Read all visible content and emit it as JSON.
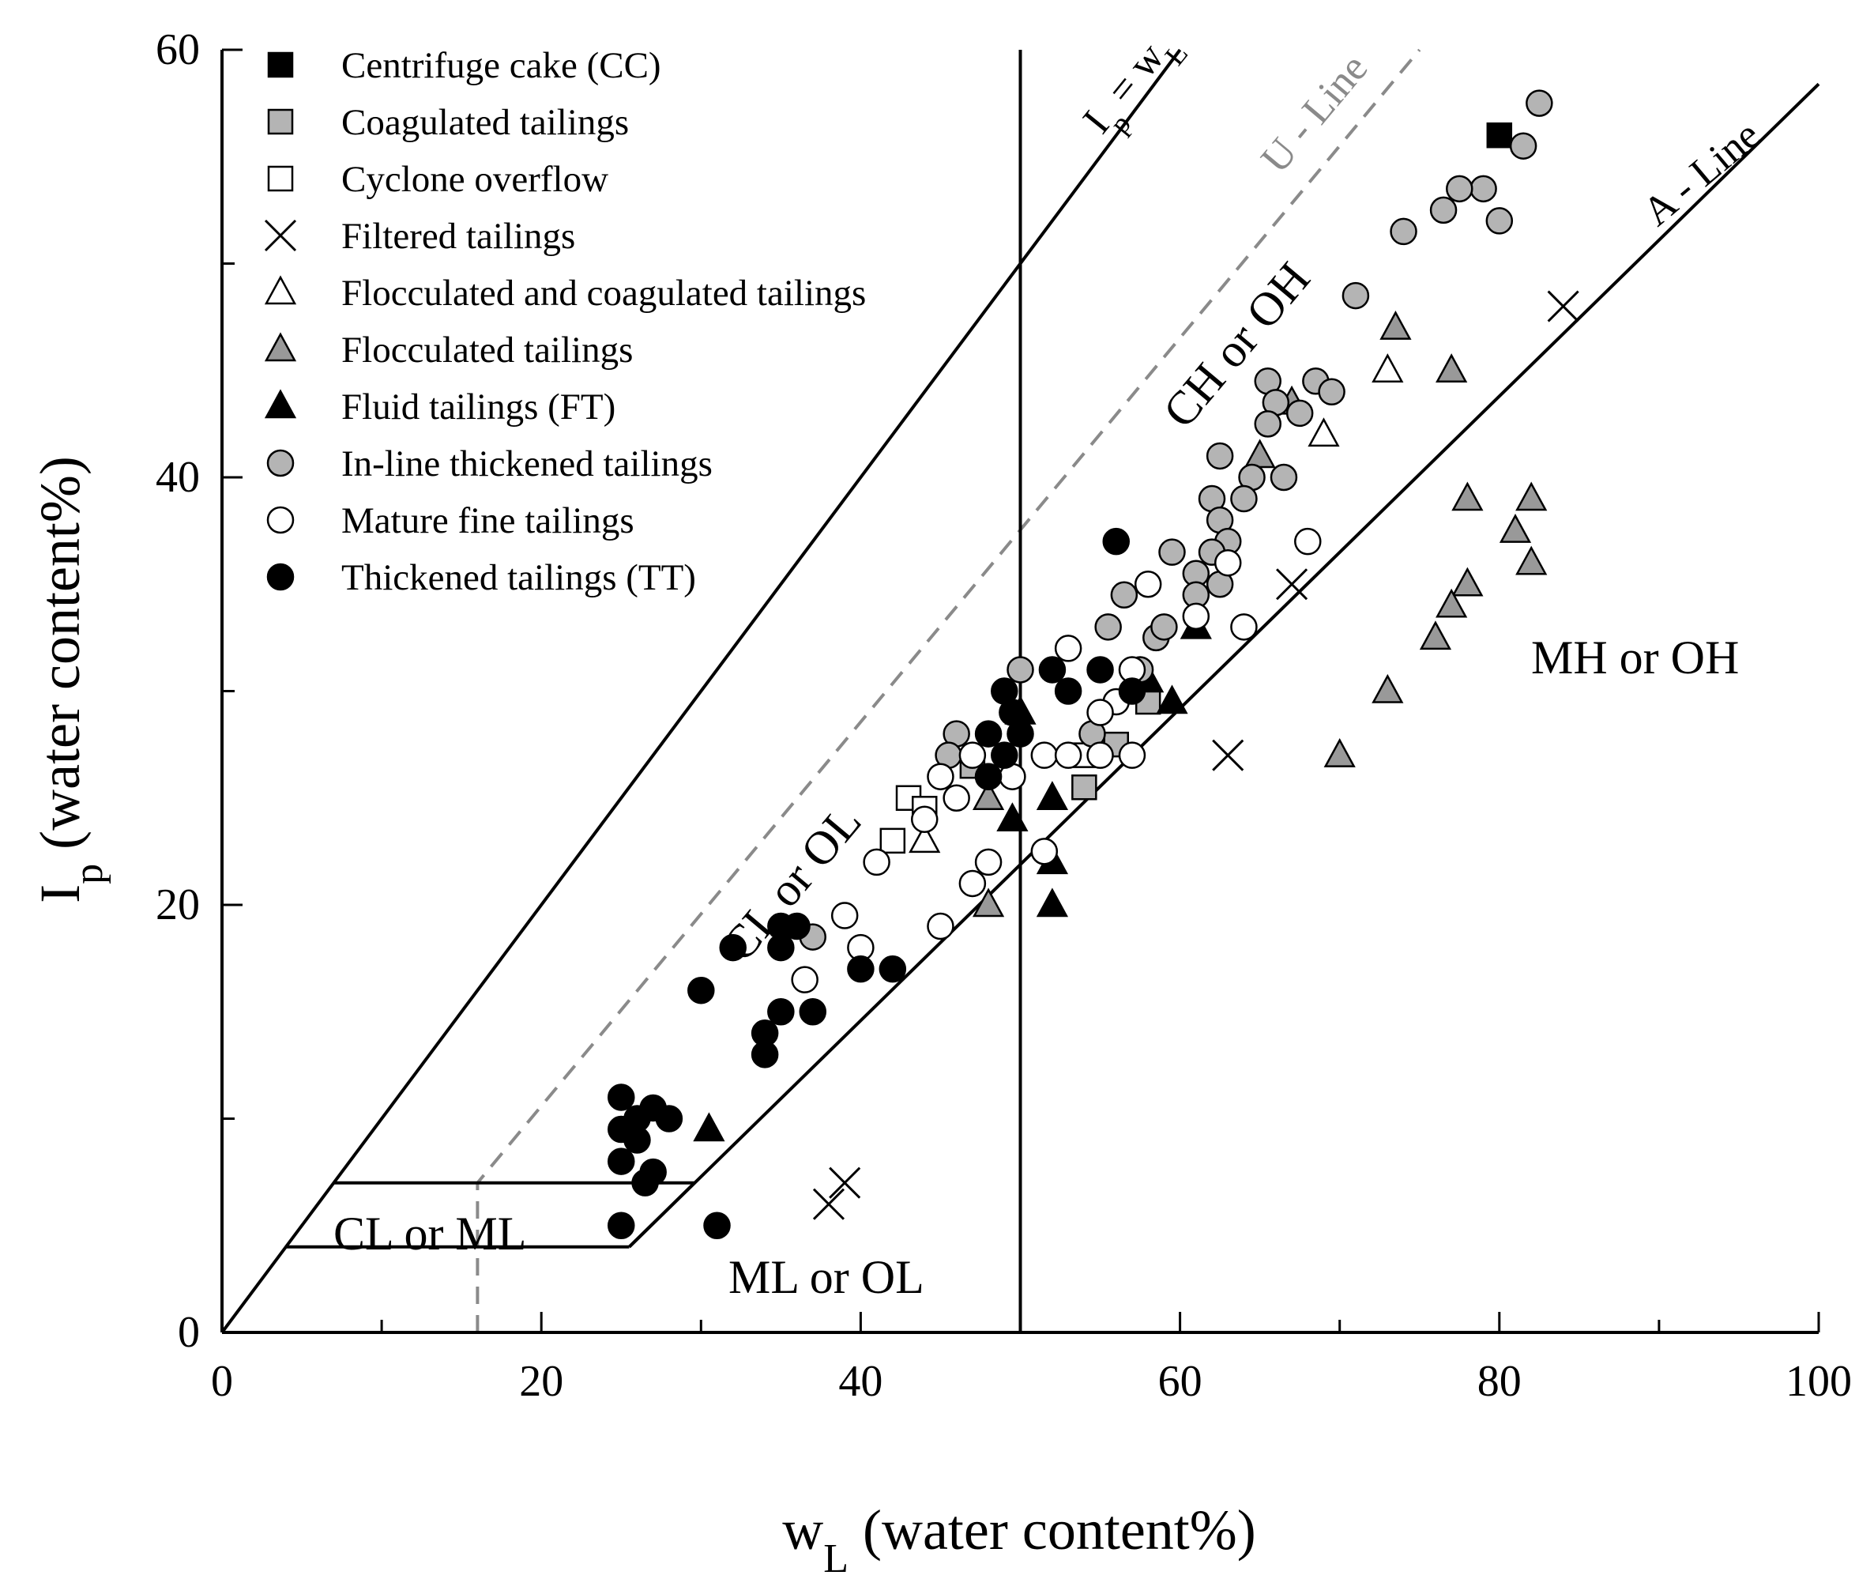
{
  "chart_data": {
    "type": "scatter",
    "title": "",
    "xlabel": {
      "main": "w",
      "sub": "L",
      "rest": " (water content%)"
    },
    "ylabel": {
      "main": "I",
      "sub": "p",
      "rest": " (water content%)"
    },
    "xlim": [
      0,
      100
    ],
    "ylim": [
      0,
      60
    ],
    "x_ticks": [
      0,
      20,
      40,
      60,
      80,
      100
    ],
    "x_tick_labels": [
      "0",
      "20",
      "40",
      "60",
      "80",
      "100"
    ],
    "y_ticks": [
      0,
      20,
      40,
      60
    ],
    "y_tick_labels": [
      "0",
      "20",
      "40",
      "60"
    ],
    "grid": false,
    "legend_position": "top-left",
    "reference_lines": [
      {
        "name": "ip-equals-wl-line",
        "label_main": "I",
        "label_sub": "p",
        "label_rest": " = w",
        "label_sub2": "L",
        "points": [
          [
            0,
            0
          ],
          [
            60,
            60
          ]
        ]
      },
      {
        "name": "u-line",
        "label": "U - Line",
        "dashed": true,
        "points": [
          [
            16,
            0
          ],
          [
            16,
            7
          ],
          [
            75,
            60
          ]
        ]
      },
      {
        "name": "a-line",
        "label": "A - Line",
        "points": [
          [
            25.5,
            4
          ],
          [
            100,
            58.4
          ]
        ]
      },
      {
        "name": "wl-50-line",
        "points": [
          [
            50,
            0
          ],
          [
            50,
            60
          ]
        ]
      },
      {
        "name": "cl-ml-upper-line",
        "points": [
          [
            7,
            7
          ],
          [
            29.6,
            7
          ]
        ]
      },
      {
        "name": "cl-ml-lower-line",
        "points": [
          [
            4,
            4
          ],
          [
            25.5,
            4
          ]
        ]
      },
      {
        "name": "a-line-lower-segment",
        "points": [
          [
            25.5,
            4
          ],
          [
            29.6,
            7
          ]
        ]
      }
    ],
    "region_labels": [
      {
        "name": "cl-ml-label",
        "text": "CL or ML"
      },
      {
        "name": "ml-ol-label",
        "text": "ML or OL"
      },
      {
        "name": "cl-ol-label",
        "text": "CL or OL"
      },
      {
        "name": "ch-oh-label",
        "text": "CH or OH"
      },
      {
        "name": "mh-oh-label",
        "text": "MH or OH"
      }
    ],
    "series": [
      {
        "name": "Centrifuge cake (CC)",
        "marker": "square",
        "fill": "#000000",
        "points": [
          [
            80,
            56
          ]
        ]
      },
      {
        "name": "Coagulated tailings",
        "marker": "square",
        "fill": "#b4b4b4",
        "points": [
          [
            54,
            25.5
          ],
          [
            58,
            29.5
          ],
          [
            56,
            27.5
          ],
          [
            47,
            26.5
          ]
        ]
      },
      {
        "name": "Cyclone overflow",
        "marker": "square",
        "fill": "#ffffff",
        "points": [
          [
            43,
            25
          ],
          [
            42,
            23
          ],
          [
            54,
            27
          ],
          [
            44,
            24.5
          ]
        ]
      },
      {
        "name": "Filtered tailings",
        "marker": "x",
        "fill": "#000000",
        "points": [
          [
            84,
            48
          ],
          [
            67,
            35
          ],
          [
            63,
            27
          ],
          [
            39,
            7
          ],
          [
            38,
            6
          ]
        ]
      },
      {
        "name": "Flocculated and coagulated tailings",
        "marker": "triangle",
        "fill": "#ffffff",
        "points": [
          [
            73,
            45
          ],
          [
            69,
            42
          ],
          [
            44,
            23
          ]
        ]
      },
      {
        "name": "Flocculated tailings",
        "marker": "triangle",
        "fill": "#999999",
        "points": [
          [
            73.5,
            47
          ],
          [
            77,
            45
          ],
          [
            65,
            41
          ],
          [
            78,
            39
          ],
          [
            82,
            39
          ],
          [
            81,
            37.5
          ],
          [
            82,
            36
          ],
          [
            78,
            35
          ],
          [
            77,
            34
          ],
          [
            76,
            32.5
          ],
          [
            73,
            30
          ],
          [
            70,
            27
          ],
          [
            48,
            20
          ],
          [
            48,
            25
          ],
          [
            67,
            43.5
          ]
        ]
      },
      {
        "name": "Fluid tailings (FT)",
        "marker": "triangle",
        "fill": "#000000",
        "points": [
          [
            52,
            20
          ],
          [
            52,
            22
          ],
          [
            52,
            25
          ],
          [
            49.5,
            24
          ],
          [
            58,
            30.5
          ],
          [
            59.5,
            29.5
          ],
          [
            61,
            33
          ],
          [
            30.5,
            9.5
          ],
          [
            50,
            29
          ]
        ]
      },
      {
        "name": "In-line thickened tailings",
        "marker": "circle",
        "fill": "#b4b4b4",
        "points": [
          [
            82.5,
            57.5
          ],
          [
            81.5,
            55.5
          ],
          [
            79,
            53.5
          ],
          [
            77.5,
            53.5
          ],
          [
            76.5,
            52.5
          ],
          [
            74,
            51.5
          ],
          [
            80,
            52
          ],
          [
            71,
            48.5
          ],
          [
            65.5,
            44.5
          ],
          [
            68.5,
            44.5
          ],
          [
            69.5,
            44
          ],
          [
            66,
            43.5
          ],
          [
            67.5,
            43
          ],
          [
            65.5,
            42.5
          ],
          [
            62.5,
            41
          ],
          [
            64.5,
            40
          ],
          [
            66.5,
            40
          ],
          [
            62,
            39
          ],
          [
            64,
            39
          ],
          [
            62.5,
            38
          ],
          [
            63,
            37
          ],
          [
            62,
            36.5
          ],
          [
            59.5,
            36.5
          ],
          [
            61,
            35.5
          ],
          [
            61,
            34.5
          ],
          [
            62.5,
            35
          ],
          [
            57.5,
            31
          ],
          [
            58.5,
            32.5
          ],
          [
            59,
            33
          ],
          [
            55.5,
            33
          ],
          [
            56.5,
            34.5
          ],
          [
            50,
            31
          ],
          [
            46,
            28
          ],
          [
            45.5,
            27
          ],
          [
            48,
            26
          ],
          [
            37,
            18.5
          ],
          [
            54.5,
            28
          ]
        ]
      },
      {
        "name": "Mature fine tailings",
        "marker": "circle",
        "fill": "#ffffff",
        "points": [
          [
            68,
            37
          ],
          [
            63,
            36
          ],
          [
            58,
            35
          ],
          [
            64,
            33
          ],
          [
            61,
            33.5
          ],
          [
            53,
            32
          ],
          [
            57,
            31
          ],
          [
            56,
            29.5
          ],
          [
            55,
            29
          ],
          [
            57,
            27
          ],
          [
            55,
            27
          ],
          [
            51.5,
            27
          ],
          [
            53,
            27
          ],
          [
            47,
            27
          ],
          [
            45,
            26
          ],
          [
            46,
            25
          ],
          [
            49.5,
            26
          ],
          [
            44,
            24
          ],
          [
            41,
            22
          ],
          [
            48,
            22
          ],
          [
            47,
            21
          ],
          [
            51.5,
            22.5
          ],
          [
            39,
            19.5
          ],
          [
            36.5,
            16.5
          ],
          [
            40,
            18
          ],
          [
            45,
            19
          ]
        ]
      },
      {
        "name": "Thickened tailings (TT)",
        "marker": "circle",
        "fill": "#000000",
        "points": [
          [
            56,
            37
          ],
          [
            52,
            31
          ],
          [
            55,
            31
          ],
          [
            53,
            30
          ],
          [
            57,
            30
          ],
          [
            49,
            30
          ],
          [
            49.5,
            29
          ],
          [
            48,
            28
          ],
          [
            50,
            28
          ],
          [
            49,
            27
          ],
          [
            48,
            26
          ],
          [
            32,
            18
          ],
          [
            35,
            19
          ],
          [
            36,
            19
          ],
          [
            35,
            18
          ],
          [
            40,
            17
          ],
          [
            42,
            17
          ],
          [
            30,
            16
          ],
          [
            34,
            14
          ],
          [
            35,
            15
          ],
          [
            37,
            15
          ],
          [
            34,
            13
          ],
          [
            25,
            11
          ],
          [
            25,
            9.5
          ],
          [
            26,
            10
          ],
          [
            27,
            10.5
          ],
          [
            28,
            10
          ],
          [
            26,
            9
          ],
          [
            25,
            8
          ],
          [
            27,
            7.5
          ],
          [
            26.5,
            7
          ],
          [
            25,
            5
          ],
          [
            31,
            5
          ]
        ]
      }
    ]
  }
}
